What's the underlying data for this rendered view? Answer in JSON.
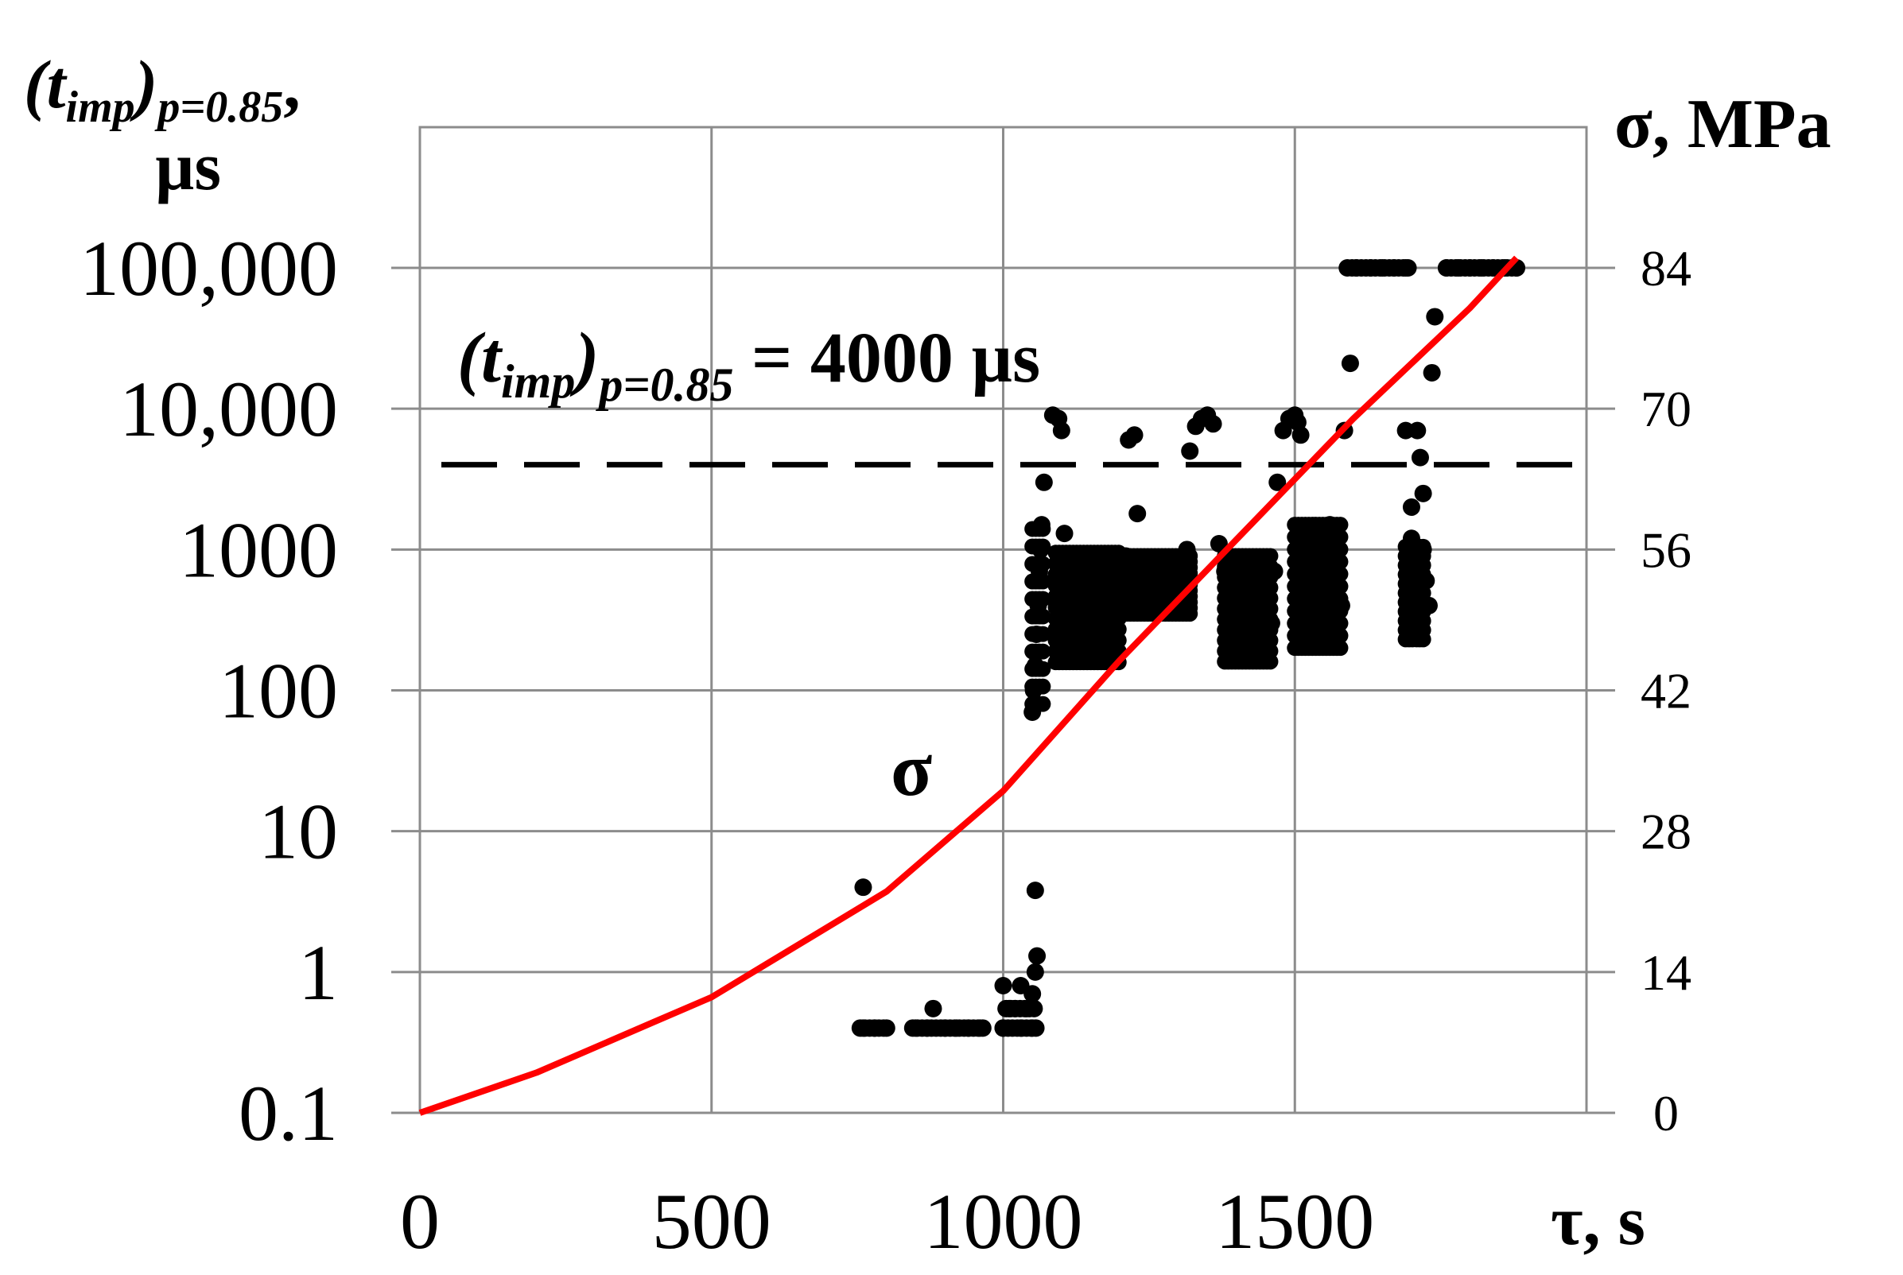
{
  "chart_data": {
    "type": "scatter",
    "title": "",
    "left_axis": {
      "label_main": "t",
      "label_sub": "imp",
      "label_subscript": "p=0.85",
      "label_sep": ",",
      "label_unit": "µs",
      "scale": "log",
      "ylim": [
        0.1,
        100000
      ],
      "ticks": [
        0.1,
        1,
        10,
        100,
        1000,
        10000,
        100000
      ],
      "tick_labels": [
        "0.1",
        "1",
        "10",
        "100",
        "1000",
        "10,000",
        "100,000"
      ]
    },
    "right_axis": {
      "label": "σ, MPa",
      "ylim": [
        0,
        84
      ],
      "ticks": [
        0,
        14,
        28,
        42,
        56,
        70,
        84
      ],
      "tick_labels": [
        "0",
        "14",
        "28",
        "42",
        "56",
        "70",
        "84"
      ]
    },
    "x_axis": {
      "label": "τ, s",
      "xlim": [
        0,
        2000
      ],
      "ticks": [
        0,
        500,
        1000,
        1500,
        2000
      ],
      "tick_labels": [
        "0",
        "500",
        "1000",
        "1500",
        ""
      ]
    },
    "grid": true,
    "threshold": {
      "value": 4000,
      "label_main": "t",
      "label_sub": "imp",
      "label_subscript": "p=0.85",
      "label_value": " = 4000 µs",
      "style": "dashed"
    },
    "sigma_label": "σ",
    "series": [
      {
        "name": "",
        "kind": "points",
        "color": "#000000",
        "points": [
          [
            760,
            4
          ],
          [
            760,
            0.4
          ],
          [
            780,
            0.4
          ],
          [
            800,
            0.4
          ],
          [
            850,
            0.4
          ],
          [
            870,
            0.4
          ],
          [
            880,
            0.55
          ],
          [
            900,
            0.4
          ],
          [
            920,
            0.4
          ],
          [
            940,
            0.4
          ],
          [
            960,
            0.4
          ],
          [
            1000,
            0.4
          ],
          [
            1000,
            0.8
          ],
          [
            1010,
            0.55
          ],
          [
            1020,
            0.55
          ],
          [
            1030,
            0.4
          ],
          [
            1030,
            0.8
          ],
          [
            1040,
            0.55
          ],
          [
            1050,
            0.4
          ],
          [
            1050,
            0.7
          ],
          [
            1055,
            1.0
          ],
          [
            1058,
            1.3
          ],
          [
            1055,
            3.8
          ],
          [
            1050,
            70
          ],
          [
            1052,
            100
          ],
          [
            1055,
            150
          ],
          [
            1057,
            250
          ],
          [
            1060,
            400
          ],
          [
            1062,
            700
          ],
          [
            1064,
            1000
          ],
          [
            1066,
            1500
          ],
          [
            1070,
            3000
          ],
          [
            1085,
            9000
          ],
          [
            1095,
            8500
          ],
          [
            1100,
            7000
          ],
          [
            1105,
            1300
          ],
          [
            1110,
            900
          ],
          [
            1115,
            600
          ],
          [
            1120,
            400
          ],
          [
            1130,
            250
          ],
          [
            1140,
            200
          ],
          [
            1150,
            300
          ],
          [
            1160,
            500
          ],
          [
            1170,
            700
          ],
          [
            1180,
            850
          ],
          [
            1190,
            700
          ],
          [
            1200,
            550
          ],
          [
            1210,
            900
          ],
          [
            1215,
            6000
          ],
          [
            1225,
            6500
          ],
          [
            1230,
            1800
          ],
          [
            1240,
            800
          ],
          [
            1250,
            600
          ],
          [
            1260,
            500
          ],
          [
            1270,
            450
          ],
          [
            1280,
            600
          ],
          [
            1290,
            700
          ],
          [
            1300,
            800
          ],
          [
            1310,
            700
          ],
          [
            1315,
            1000
          ],
          [
            1320,
            5000
          ],
          [
            1330,
            7500
          ],
          [
            1340,
            8500
          ],
          [
            1350,
            9000
          ],
          [
            1360,
            7800
          ],
          [
            1370,
            1100
          ],
          [
            1380,
            700
          ],
          [
            1390,
            500
          ],
          [
            1400,
            350
          ],
          [
            1410,
            270
          ],
          [
            1420,
            220
          ],
          [
            1430,
            180
          ],
          [
            1440,
            200
          ],
          [
            1450,
            260
          ],
          [
            1460,
            300
          ],
          [
            1465,
            700
          ],
          [
            1470,
            3000
          ],
          [
            1480,
            7000
          ],
          [
            1490,
            8500
          ],
          [
            1500,
            9000
          ],
          [
            1505,
            8000
          ],
          [
            1510,
            6500
          ],
          [
            1515,
            1000
          ],
          [
            1520,
            500
          ],
          [
            1530,
            300
          ],
          [
            1540,
            230
          ],
          [
            1550,
            400
          ],
          [
            1560,
            1500
          ],
          [
            1570,
            700
          ],
          [
            1580,
            400
          ],
          [
            1585,
            7000
          ],
          [
            1595,
            21000
          ],
          [
            1605,
            100000
          ],
          [
            1630,
            100000
          ],
          [
            1650,
            100000
          ],
          [
            1670,
            100000
          ],
          [
            1690,
            100000
          ],
          [
            1690,
            7000
          ],
          [
            1700,
            2000
          ],
          [
            1700,
            1200
          ],
          [
            1700,
            700
          ],
          [
            1700,
            500
          ],
          [
            1705,
            350
          ],
          [
            1710,
            250
          ],
          [
            1710,
            7000
          ],
          [
            1715,
            4500
          ],
          [
            1720,
            2500
          ],
          [
            1720,
            1000
          ],
          [
            1725,
            600
          ],
          [
            1730,
            400
          ],
          [
            1735,
            18000
          ],
          [
            1740,
            45000
          ],
          [
            1760,
            100000
          ],
          [
            1780,
            100000
          ],
          [
            1800,
            100000
          ],
          [
            1820,
            100000
          ],
          [
            1840,
            100000
          ],
          [
            1860,
            100000
          ],
          [
            1880,
            100000
          ]
        ]
      },
      {
        "name": "σ",
        "kind": "line",
        "axis": "right",
        "color": "#ff0000",
        "x": [
          0,
          200,
          400,
          500,
          600,
          800,
          1000,
          1200,
          1400,
          1600,
          1800,
          1880
        ],
        "y": [
          0,
          4,
          9,
          11.5,
          15,
          22,
          32,
          45,
          57,
          69,
          80,
          85
        ]
      }
    ]
  }
}
